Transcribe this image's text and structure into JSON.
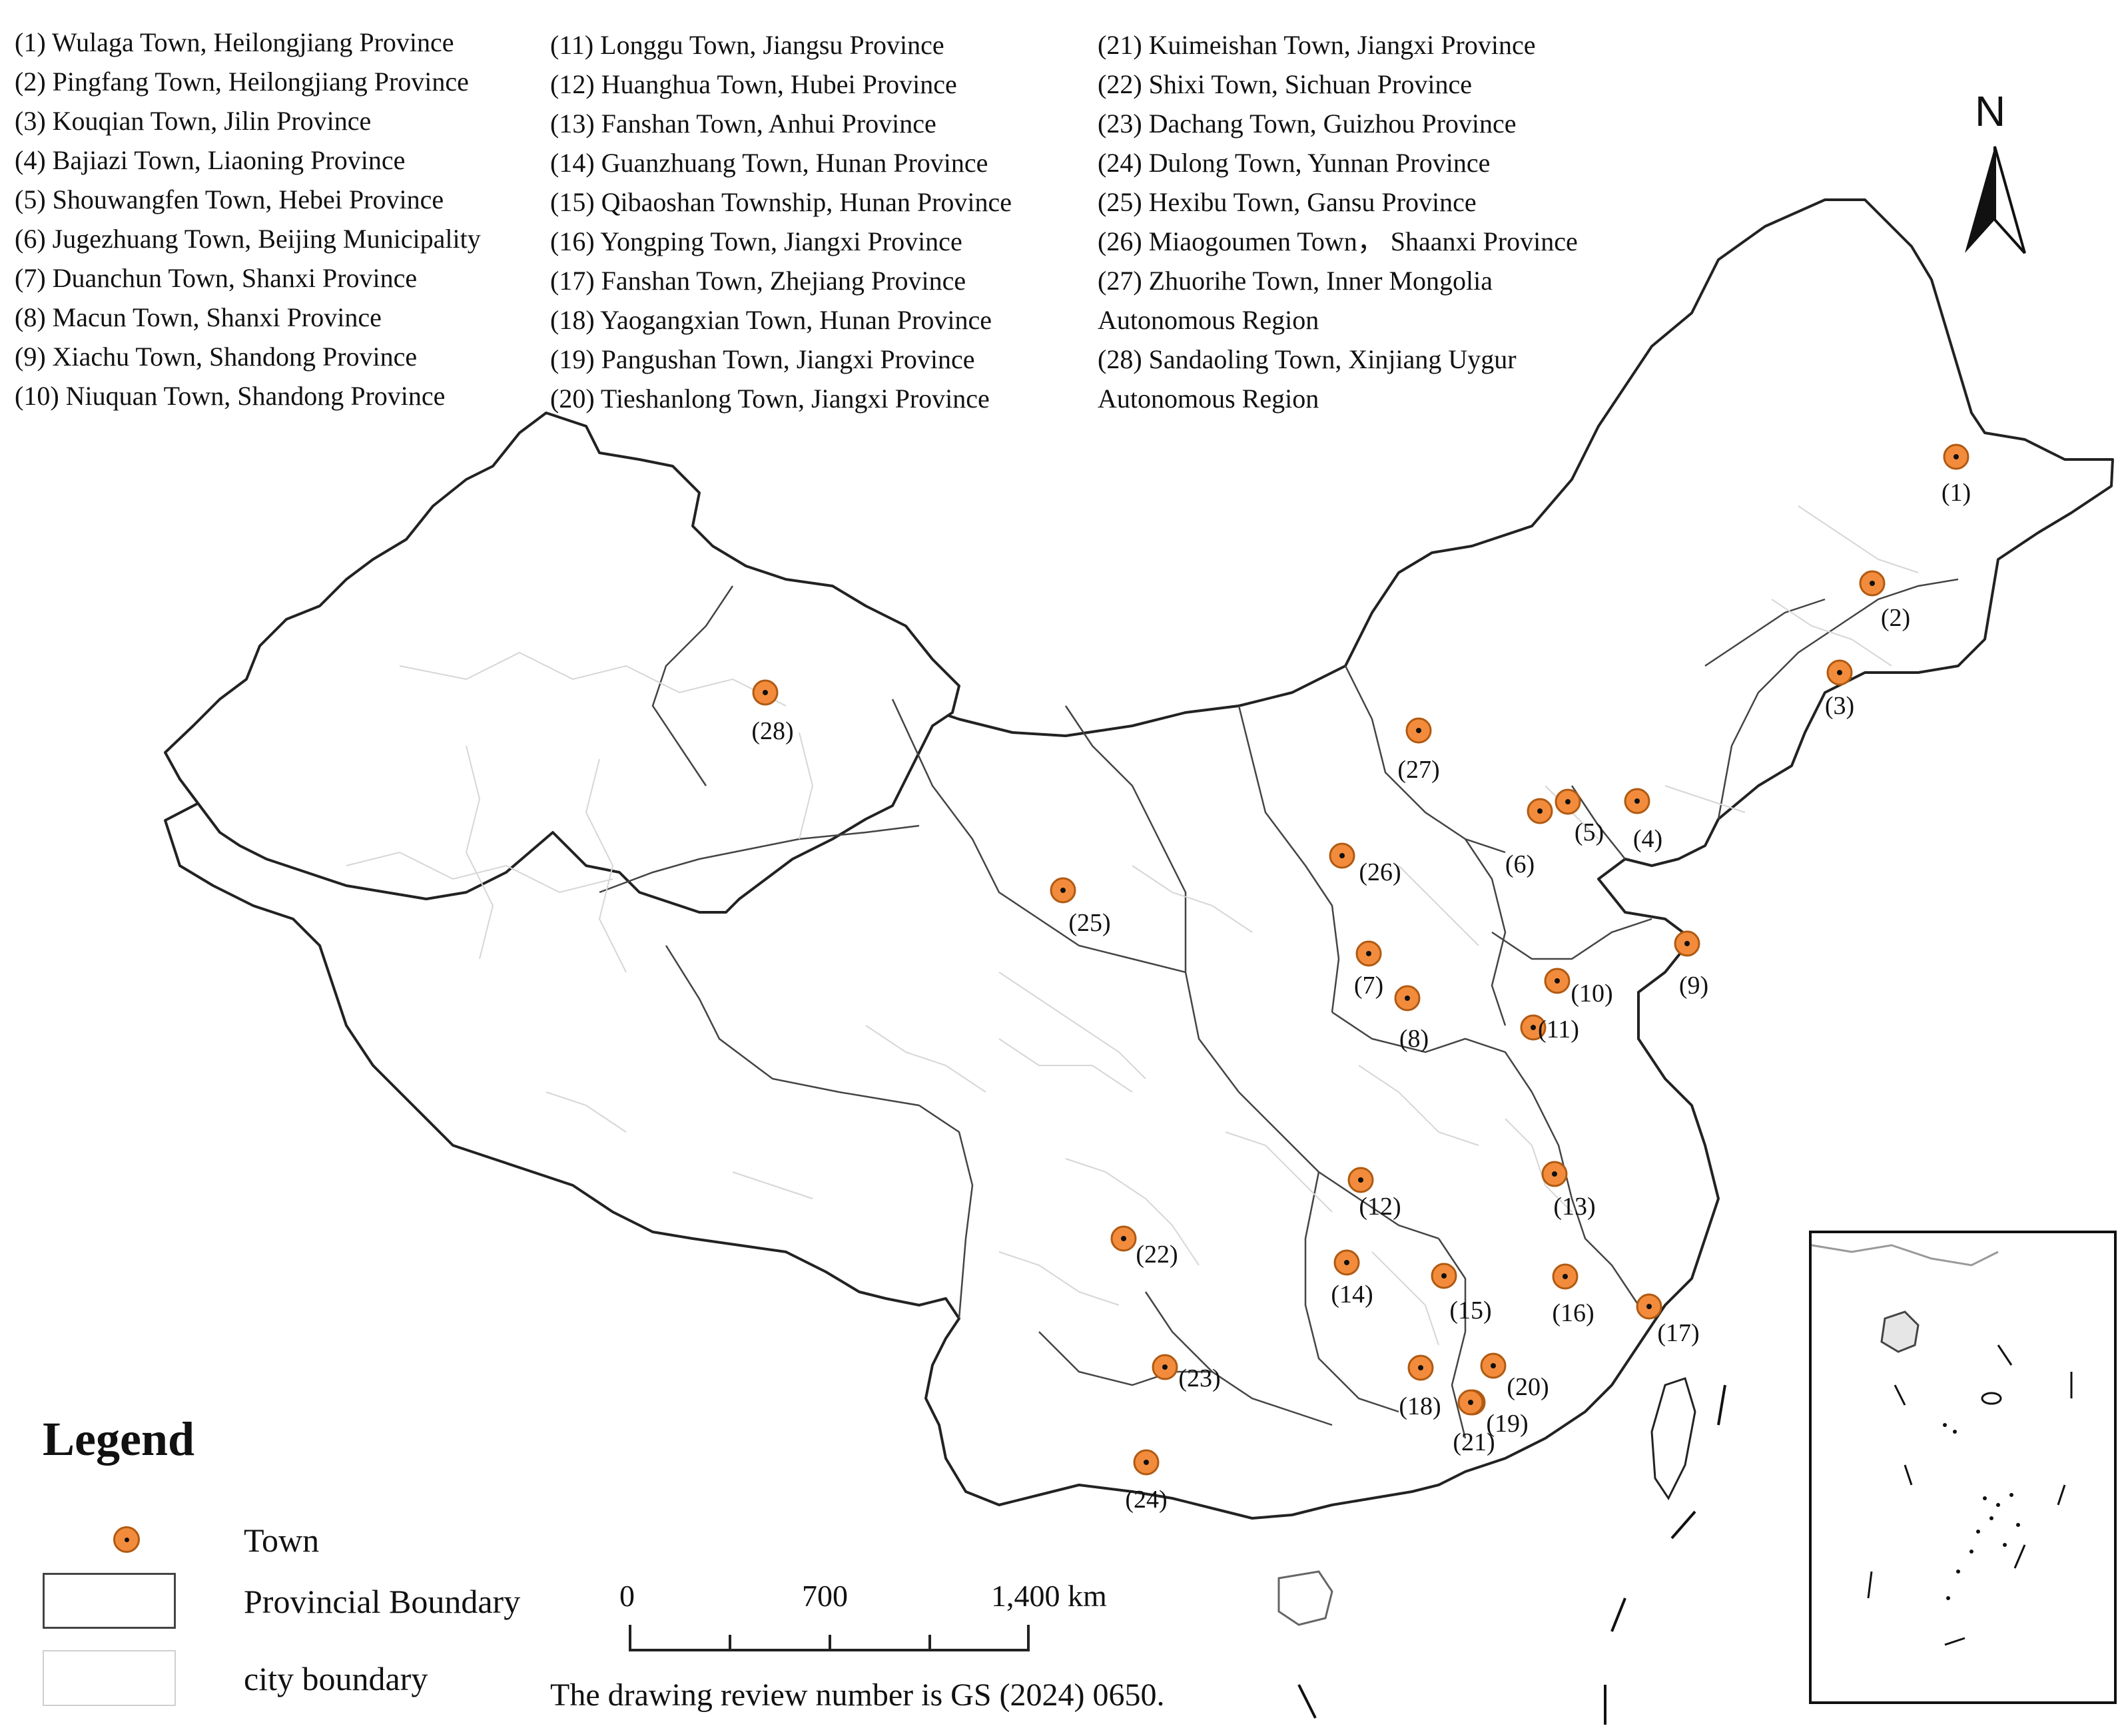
{
  "town_list": {
    "col1": [
      "(1) Wulaga Town, Heilongjiang Province",
      "(2) Pingfang Town, Heilongjiang Province",
      "(3) Kouqian Town, Jilin Province",
      "(4) Bajiazi Town, Liaoning Province",
      "(5) Shouwangfen Town, Hebei Province",
      "(6) Jugezhuang Town, Beijing Municipality",
      "(7) Duanchun Town, Shanxi Province",
      "(8) Macun Town, Shanxi Province",
      "(9) Xiachu Town, Shandong Province",
      "(10) Niuquan Town, Shandong Province"
    ],
    "col2": [
      "(11) Longgu Town, Jiangsu Province",
      "(12) Huanghua Town, Hubei Province",
      "(13) Fanshan Town, Anhui Province",
      "(14) Guanzhuang Town, Hunan Province",
      "(15) Qibaoshan Township, Hunan Province",
      "(16) Yongping Town, Jiangxi Province",
      "(17) Fanshan Town, Zhejiang Province",
      "(18) Yaogangxian Town, Hunan Province",
      "(19) Pangushan Town, Jiangxi Province",
      "(20) Tieshanlong Town, Jiangxi Province"
    ],
    "col3": [
      "(21) Kuimeishan Town, Jiangxi Province",
      "(22) Shixi Town, Sichuan Province",
      "(23) Dachang Town, Guizhou Province",
      "(24) Dulong Town, Yunnan Province",
      "(25) Hexibu Town, Gansu Province",
      "(26) Miaogoumen Town，  Shaanxi Province",
      "(27) Zhuorihe Town, Inner Mongolia",
      "Autonomous Region",
      "(28) Sandaoling Town, Xinjiang Uygur",
      "Autonomous Region"
    ]
  },
  "north_arrow": {
    "label": "N",
    "icon": "north-arrow-icon"
  },
  "markers": [
    "(1)",
    "(2)",
    "(3)",
    "(4)",
    "(5)",
    "(6)",
    "(7)",
    "(8)",
    "(9)",
    "(10)",
    "(11)",
    "(12)",
    "(13)",
    "(14)",
    "(15)",
    "(16)",
    "(17)",
    "(18)",
    "(19)",
    "(20)",
    "(21)",
    "(22)",
    "(23)",
    "(24)",
    "(25)",
    "(26)",
    "(27)",
    "(28)"
  ],
  "legend": {
    "title": "Legend",
    "items": [
      {
        "label": "Town",
        "icon": "town-marker-icon"
      },
      {
        "label": "Provincial Boundary",
        "icon": "provincial-boundary-swatch"
      },
      {
        "label": "city boundary",
        "icon": "city-boundary-swatch"
      }
    ]
  },
  "scale_bar": {
    "ticks": [
      "0",
      "700",
      "1,400 km"
    ]
  },
  "review_note": "The drawing review number is GS (2024) 0650.",
  "colors": {
    "marker_fill": "#f28c3c",
    "marker_stroke": "#b05a12",
    "province_line": "#333333",
    "city_line": "#d4d4d4",
    "background": "#ffffff"
  }
}
